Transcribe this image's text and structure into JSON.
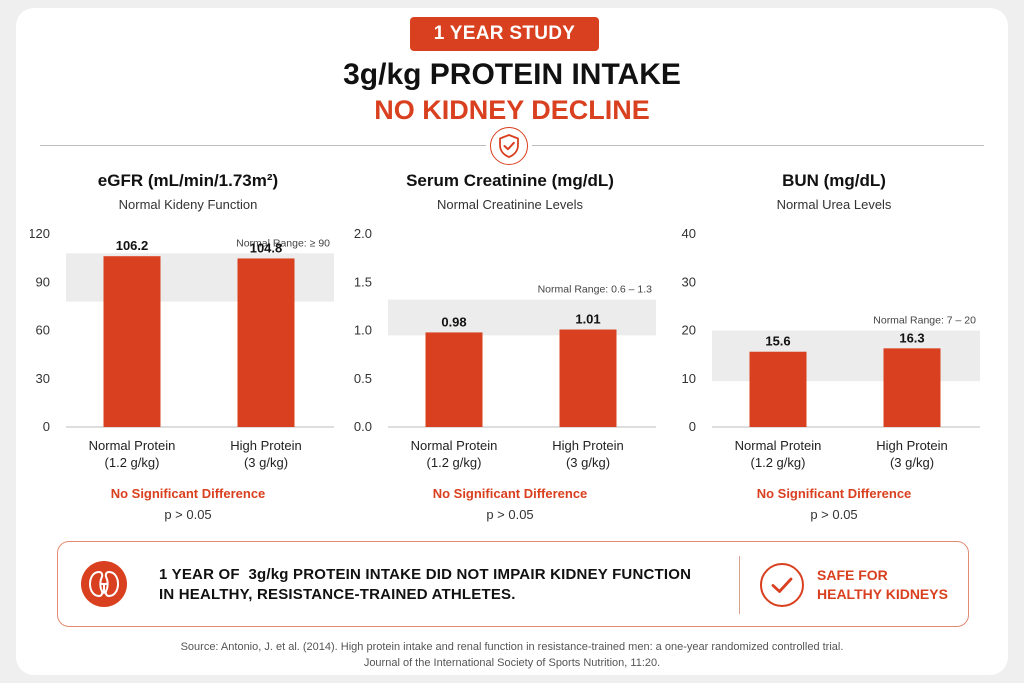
{
  "header": {
    "badge": "1 YEAR STUDY",
    "title": "3g/kg PROTEIN INTAKE",
    "subtitle": "NO KIDNEY DECLINE"
  },
  "colors": {
    "accent": "#d9401f",
    "band": "#ececec",
    "text": "#222222"
  },
  "icons": {
    "header": "shield-check-icon",
    "summary": "kidneys-icon",
    "safe": "check-circle-icon"
  },
  "chart_data": [
    {
      "type": "bar",
      "title": "eGFR (mL/min/1.73m²)",
      "subtitle": "Normal Kideny Function",
      "categories": [
        "Normal Protein\n(1.2 g/kg)",
        "High Protein\n(3 g/kg)"
      ],
      "values": [
        106.2,
        104.8
      ],
      "value_labels": [
        "106.2",
        "104.8"
      ],
      "ylim": [
        0,
        120
      ],
      "yticks": [
        0,
        30,
        60,
        90,
        120
      ],
      "ytick_labels": [
        "0",
        "30",
        "60",
        "90",
        "120"
      ],
      "normal_range": {
        "label": "Normal Range: ≥ 90",
        "from": 78,
        "to": 108
      },
      "significance": "No Significant Difference",
      "p_value": "p > 0.05"
    },
    {
      "type": "bar",
      "title": "Serum Creatinine (mg/dL)",
      "subtitle": "Normal Creatinine Levels",
      "categories": [
        "Normal Protein\n(1.2 g/kg)",
        "High Protein\n(3 g/kg)"
      ],
      "values": [
        0.98,
        1.01
      ],
      "value_labels": [
        "0.98",
        "1.01"
      ],
      "ylim": [
        0,
        2.0
      ],
      "yticks": [
        0,
        0.5,
        1.0,
        1.5,
        2.0
      ],
      "ytick_labels": [
        "0.0",
        "0.5",
        "1.0",
        "1.5",
        "2.0"
      ],
      "normal_range": {
        "label": "Normal Range: 0.6 – 1.3",
        "from": 0.95,
        "to": 1.32
      },
      "significance": "No Significant Difference",
      "p_value": "p > 0.05"
    },
    {
      "type": "bar",
      "title": "BUN (mg/dL)",
      "subtitle": "Normal Urea Levels",
      "categories": [
        "Normal Protein\n(1.2 g/kg)",
        "High Protein\n(3 g/kg)"
      ],
      "values": [
        15.6,
        16.3
      ],
      "value_labels": [
        "15.6",
        "16.3"
      ],
      "ylim": [
        0,
        40
      ],
      "yticks": [
        0,
        10,
        20,
        30,
        40
      ],
      "ytick_labels": [
        "0",
        "10",
        "20",
        "30",
        "40"
      ],
      "normal_range": {
        "label": "Normal Range: 7 – 20",
        "from": 9.5,
        "to": 20
      },
      "significance": "No Significant Difference",
      "p_value": "p > 0.05"
    }
  ],
  "summary": {
    "line1": "1 YEAR OF  3g/kg PROTEIN INTAKE DID NOT IMPAIR KIDNEY FUNCTION",
    "line2": "IN HEALTHY, RESISTANCE-TRAINED ATHLETES.",
    "safe_line1": "SAFE FOR",
    "safe_line2": "HEALTHY KIDNEYS"
  },
  "source": {
    "line1": "Source: Antonio, J. et al. (2014). High protein intake and renal function in resistance-trained men: a one-year randomized controlled trial.",
    "line2": "Journal of the International Society of Sports Nutrition, 11:20."
  }
}
